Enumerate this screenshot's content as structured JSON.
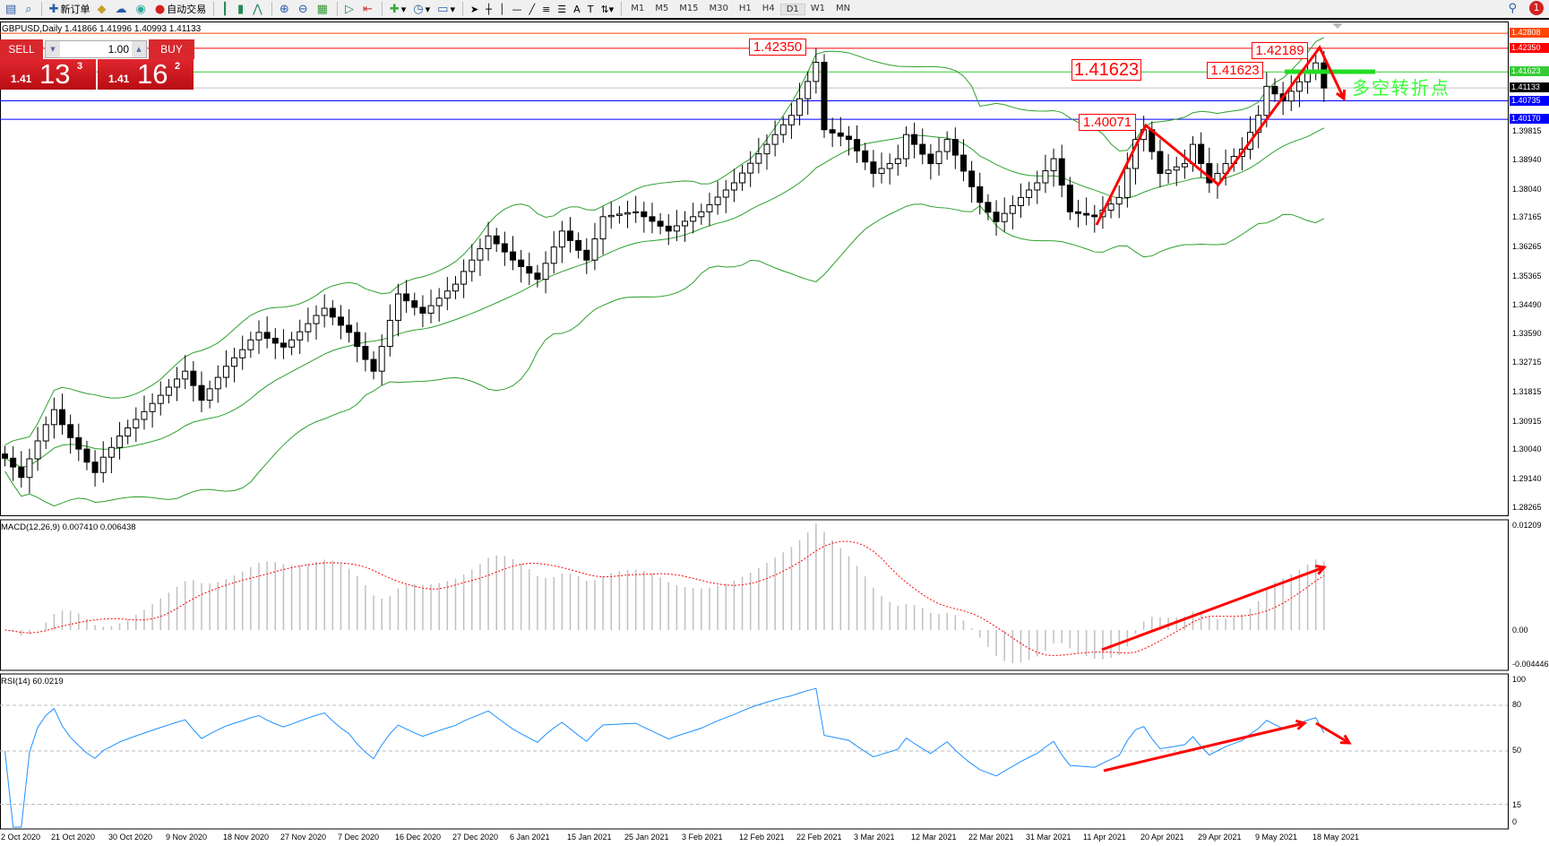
{
  "toolbar": {
    "new_order_label": "新订单",
    "auto_trading_label": "自动交易",
    "timeframes": [
      "M1",
      "M5",
      "M15",
      "M30",
      "H1",
      "H4",
      "D1",
      "W1",
      "MN"
    ],
    "active_timeframe": "D1",
    "notification_count": "1"
  },
  "chart_header": {
    "info": "GBPUSD,Daily  1.41866 1.41996 1.40993 1.41133"
  },
  "trade_panel": {
    "sell_label": "SELL",
    "buy_label": "BUY",
    "lot": "1.00",
    "sell_price": {
      "small": "1.41",
      "big": "13",
      "pip": "3"
    },
    "buy_price": {
      "small": "1.41",
      "big": "16",
      "pip": "2"
    }
  },
  "annotations": {
    "labels": [
      "1.42350",
      "1.41623",
      "1.41623",
      "1.42189",
      "1.40071"
    ],
    "note": "多空转折点"
  },
  "colors": {
    "bull_fill": "#ffffff",
    "bear_fill": "#000000",
    "bands": "#2ca02c",
    "macd_hist": "#c0c0c0",
    "macd_signal": "#ff0000",
    "rsi": "#1e90ff",
    "arrows": "#ff0000"
  },
  "price_axis": {
    "ticks": [
      "1.39815",
      "1.38940",
      "1.38040",
      "1.37165",
      "1.36265",
      "1.35365",
      "1.34490",
      "1.33590",
      "1.32715",
      "1.31815",
      "1.30915",
      "1.30040",
      "1.29140",
      "1.28265"
    ],
    "top_label": "1.42808",
    "levels": [
      {
        "value": "1.42808",
        "color": "#ff4500"
      },
      {
        "value": "1.42350",
        "color": "#ff0000"
      },
      {
        "value": "1.41623",
        "color": "#33cc33"
      },
      {
        "value": "1.41133",
        "color": "#000000"
      },
      {
        "value": "1.40735",
        "color": "#0000ff"
      },
      {
        "value": "1.40170",
        "color": "#0000ff"
      }
    ]
  },
  "macd": {
    "label": "MACD(12,26,9) 0.007410 0.006438",
    "axis": [
      "0.01209",
      "0.00",
      "-0.004446"
    ]
  },
  "rsi": {
    "label": "RSI(14) 60.0219",
    "axis": [
      "100",
      "80",
      "50",
      "15",
      "0"
    ],
    "levels": [
      80,
      50,
      15
    ]
  },
  "date_axis": [
    "2 Oct 2020",
    "21 Oct 2020",
    "30 Oct 2020",
    "9 Nov 2020",
    "18 Nov 2020",
    "27 Nov 2020",
    "7 Dec 2020",
    "16 Dec 2020",
    "27 Dec 2020",
    "6 Jan 2021",
    "15 Jan 2021",
    "25 Jan 2021",
    "3 Feb 2021",
    "12 Feb 2021",
    "22 Feb 2021",
    "3 Mar 2021",
    "12 Mar 2021",
    "22 Mar 2021",
    "31 Mar 2021",
    "11 Apr 2021",
    "20 Apr 2021",
    "29 Apr 2021",
    "9 May 2021",
    "18 May 2021"
  ],
  "chart_data": {
    "type": "candlestick",
    "symbol": "GBPUSD",
    "timeframe": "Daily",
    "ylim": [
      1.28265,
      1.42808
    ],
    "bollinger": {
      "period": 20,
      "deviations": 2
    },
    "close": [
      1.2977,
      1.295,
      1.2918,
      1.2975,
      1.303,
      1.308,
      1.3126,
      1.308,
      1.304,
      1.3005,
      1.2965,
      1.2933,
      1.298,
      1.301,
      1.3045,
      1.307,
      1.3096,
      1.312,
      1.3145,
      1.317,
      1.3195,
      1.322,
      1.3244,
      1.32,
      1.3155,
      1.319,
      1.3225,
      1.3259,
      1.3285,
      1.331,
      1.334,
      1.3363,
      1.3345,
      1.333,
      1.3318,
      1.334,
      1.3365,
      1.339,
      1.3415,
      1.3437,
      1.341,
      1.3385,
      1.3363,
      1.332,
      1.328,
      1.3244,
      1.332,
      1.34,
      1.3481,
      1.346,
      1.344,
      1.3422,
      1.3445,
      1.3468,
      1.349,
      1.3511,
      1.355,
      1.3585,
      1.362,
      1.3659,
      1.3635,
      1.361,
      1.3585,
      1.3565,
      1.3545,
      1.3526,
      1.3575,
      1.3625,
      1.3674,
      1.3645,
      1.3615,
      1.3585,
      1.365,
      1.3718,
      1.3722,
      1.3726,
      1.373,
      1.3733,
      1.3718,
      1.3704,
      1.3689,
      1.3674,
      1.369,
      1.3704,
      1.3718,
      1.3733,
      1.3755,
      1.3778,
      1.38,
      1.3822,
      1.3852,
      1.3882,
      1.3911,
      1.394,
      1.397,
      1.4,
      1.4029,
      1.408,
      1.4133,
      1.4192,
      1.3985,
      1.3975,
      1.3965,
      1.3955,
      1.392,
      1.3886,
      1.3851,
      1.3866,
      1.3881,
      1.3896,
      1.397,
      1.394,
      1.391,
      1.3881,
      1.3918,
      1.3955,
      1.3907,
      1.3858,
      1.381,
      1.3762,
      1.3732,
      1.3703,
      1.3728,
      1.3752,
      1.3777,
      1.38,
      1.3822,
      1.3859,
      1.3896,
      1.3815,
      1.3733,
      1.3728,
      1.3723,
      1.3718,
      1.3738,
      1.3757,
      1.3777,
      1.3866,
      1.3955,
      1.3985,
      1.3918,
      1.3851,
      1.3861,
      1.3871,
      1.3881,
      1.394,
      1.3881,
      1.3822,
      1.3851,
      1.3881,
      1.3903,
      1.3925,
      1.3977,
      1.4029,
      1.4118,
      1.4095,
      1.4073,
      1.4103,
      1.4132,
      1.4162,
      1.419,
      1.4113
    ]
  }
}
